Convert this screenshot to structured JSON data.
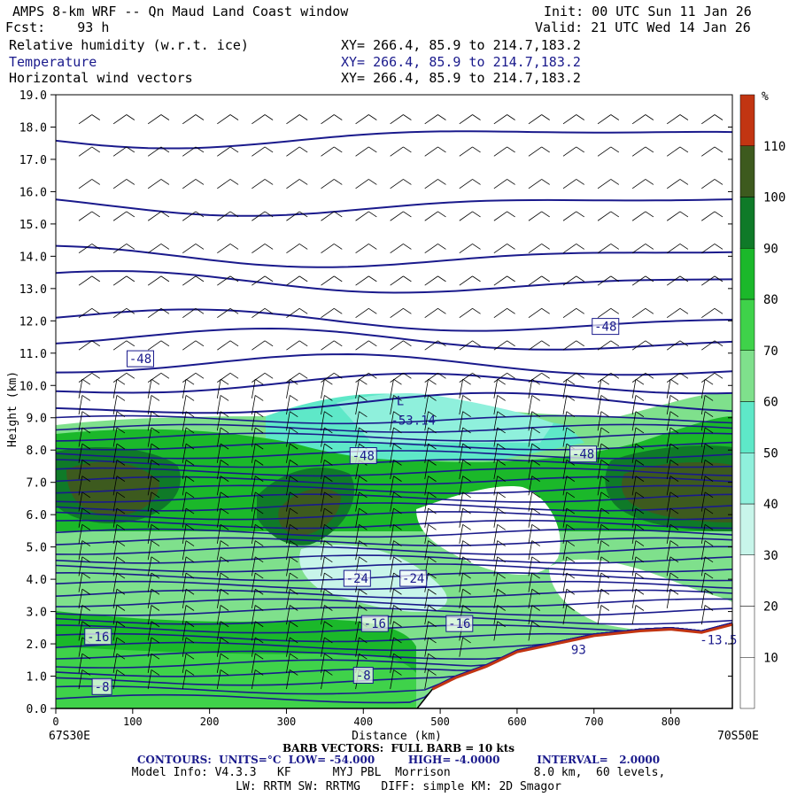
{
  "header": {
    "title": "AMPS 8-km WRF -- Qn Maud Land Coast window",
    "init": "Init: 00 UTC Sun 11 Jan 26",
    "fcst": "Fcst:    93 h",
    "valid": "Valid: 21 UTC Wed 14 Jan 26",
    "fields": [
      {
        "name": "Relative humidity (w.r.t. ice)",
        "xy": "XY= 266.4, 85.9 to 214.7,183.2"
      },
      {
        "name": "Temperature",
        "xy": "XY= 266.4, 85.9 to 214.7,183.2"
      },
      {
        "name": "Horizontal wind vectors",
        "xy": "XY= 266.4, 85.9 to 214.7,183.2"
      }
    ]
  },
  "chart_data": {
    "type": "heatmap",
    "xlabel": "Distance (km)",
    "ylabel": "Height (km)",
    "xlim": [
      0,
      880
    ],
    "ylim": [
      0,
      19
    ],
    "x_ticks": [
      "0",
      "100",
      "200",
      "300",
      "400",
      "500",
      "600",
      "700",
      "800"
    ],
    "y_ticks": [
      "0.0",
      "1.0",
      "2.0",
      "3.0",
      "4.0",
      "5.0",
      "6.0",
      "7.0",
      "8.0",
      "9.0",
      "10.0",
      "11.0",
      "12.0",
      "13.0",
      "14.0",
      "15.0",
      "16.0",
      "17.0",
      "18.0",
      "19.0"
    ],
    "x_endpoint_left": "67S30E",
    "x_endpoint_right": "70S50E",
    "colorbar": {
      "unit": "%",
      "bins": [
        {
          "lo": 0,
          "hi": 10,
          "color": "#ffffff"
        },
        {
          "lo": 10,
          "hi": 20,
          "color": "#ffffff"
        },
        {
          "lo": 20,
          "hi": 30,
          "color": "#ffffff"
        },
        {
          "lo": 30,
          "hi": 40,
          "color": "#c8f5ea"
        },
        {
          "lo": 40,
          "hi": 50,
          "color": "#8ff0dc"
        },
        {
          "lo": 50,
          "hi": 60,
          "color": "#5ee8c8"
        },
        {
          "lo": 60,
          "hi": 70,
          "color": "#7fe08c"
        },
        {
          "lo": 70,
          "hi": 80,
          "color": "#3fd24a"
        },
        {
          "lo": 80,
          "hi": 90,
          "color": "#1bb82a"
        },
        {
          "lo": 90,
          "hi": 100,
          "color": "#0f7a28"
        },
        {
          "lo": 100,
          "hi": 110,
          "color": "#3d5a1e"
        },
        {
          "lo": 110,
          "hi": 120,
          "color": "#c23512"
        }
      ],
      "labels": [
        "10",
        "20",
        "30",
        "40",
        "50",
        "60",
        "70",
        "80",
        "90",
        "100",
        "110"
      ]
    },
    "terrain": [
      [
        0,
        0
      ],
      [
        470,
        0
      ],
      [
        490,
        0.6
      ],
      [
        520,
        0.95
      ],
      [
        560,
        1.3
      ],
      [
        600,
        1.75
      ],
      [
        650,
        2.0
      ],
      [
        700,
        2.25
      ],
      [
        760,
        2.4
      ],
      [
        800,
        2.45
      ],
      [
        840,
        2.35
      ],
      [
        880,
        2.6
      ]
    ],
    "contour_labels": [
      {
        "text": "-48",
        "x": 110,
        "y": 10.8
      },
      {
        "text": "-48",
        "x": 715,
        "y": 11.8
      },
      {
        "text": "-48",
        "x": 400,
        "y": 7.8
      },
      {
        "text": "-48",
        "x": 686,
        "y": 7.85
      },
      {
        "text": "-53.14",
        "x": 465,
        "y": 8.9
      },
      {
        "text": "-24",
        "x": 392,
        "y": 4.0
      },
      {
        "text": "-24",
        "x": 465,
        "y": 4.0
      },
      {
        "text": "-16",
        "x": 55,
        "y": 2.2
      },
      {
        "text": "-16",
        "x": 415,
        "y": 2.6
      },
      {
        "text": "-16",
        "x": 525,
        "y": 2.6
      },
      {
        "text": "-8",
        "x": 400,
        "y": 1.0
      },
      {
        "text": "-8",
        "x": 60,
        "y": 0.65
      },
      {
        "text": "-13.5",
        "x": 862,
        "y": 2.1
      },
      {
        "text": "93",
        "x": 680,
        "y": 1.8
      },
      {
        "text": "L",
        "x": 448,
        "y": 9.5
      }
    ]
  },
  "footer": {
    "barb": "BARB VECTORS:  FULL BARB = 10 kts",
    "contours": "CONTOURS:  UNITS=°C  LOW= -54.000         HIGH= -4.0000          INTERVAL=   2.0000",
    "model1": "Model Info: V4.3.3   KF      MYJ PBL  Morrison            8.0 km,  60 levels,",
    "model2": "LW: RRTM SW: RRTMG   DIFF: simple KM: 2D Smagor"
  },
  "colors": {
    "contour": "#1a1a8c",
    "terrain": "#c23512"
  }
}
